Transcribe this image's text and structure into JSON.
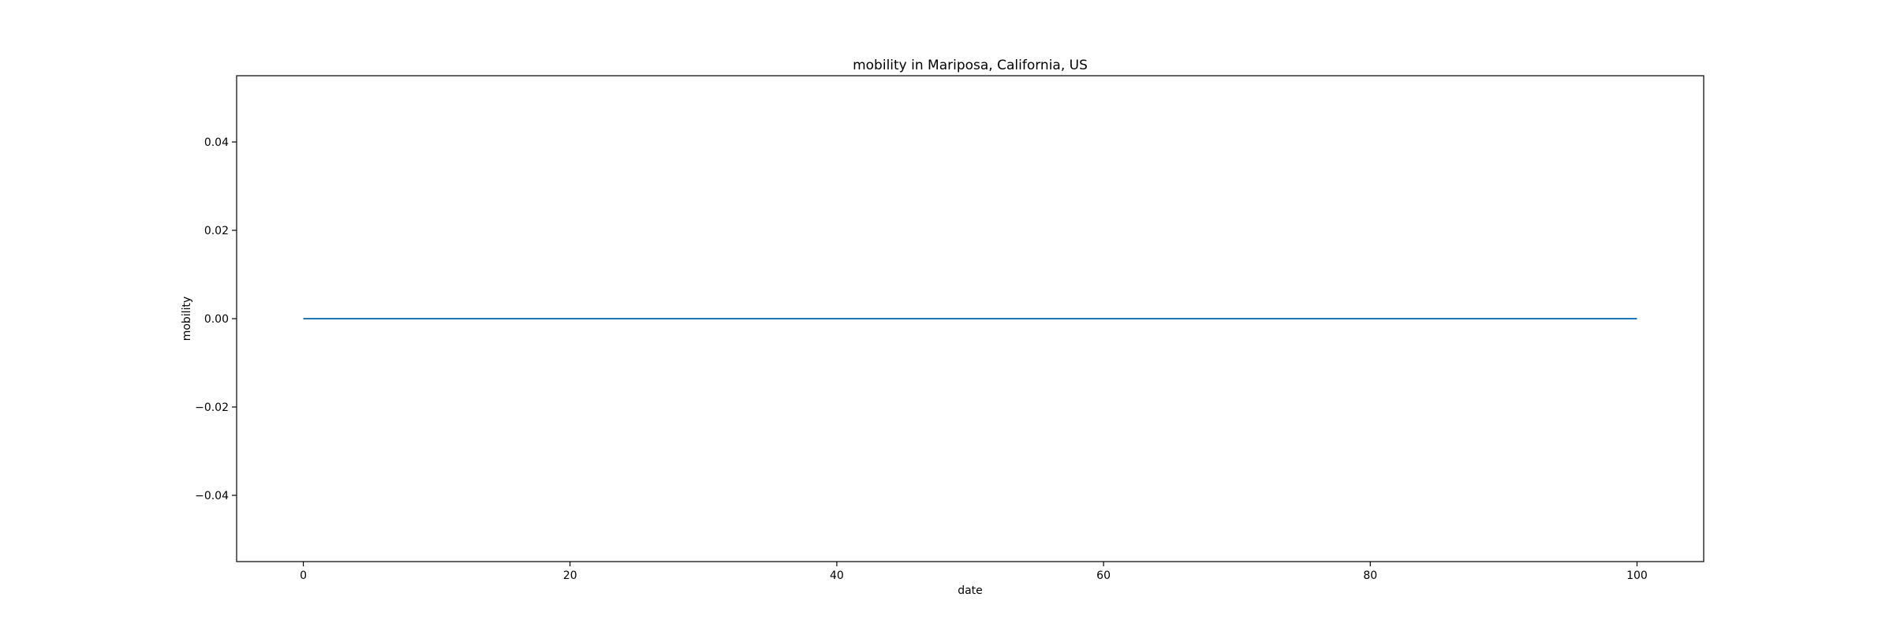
{
  "chart_data": {
    "type": "line",
    "title": "mobility in Mariposa, California, US",
    "xlabel": "date",
    "ylabel": "mobility",
    "xlim": [
      -5,
      105
    ],
    "ylim": [
      -0.055,
      0.055
    ],
    "xticks": [
      0,
      20,
      40,
      60,
      80,
      100
    ],
    "xtick_labels": [
      "0",
      "20",
      "40",
      "60",
      "80",
      "100"
    ],
    "yticks": [
      -0.04,
      -0.02,
      0.0,
      0.02,
      0.04
    ],
    "ytick_labels": [
      "−0.04",
      "−0.02",
      "0.00",
      "0.02",
      "0.04"
    ],
    "grid": false,
    "series": [
      {
        "name": "mobility",
        "color": "#1f77b4",
        "x": [
          0,
          100
        ],
        "y": [
          0.0,
          0.0
        ]
      }
    ]
  }
}
